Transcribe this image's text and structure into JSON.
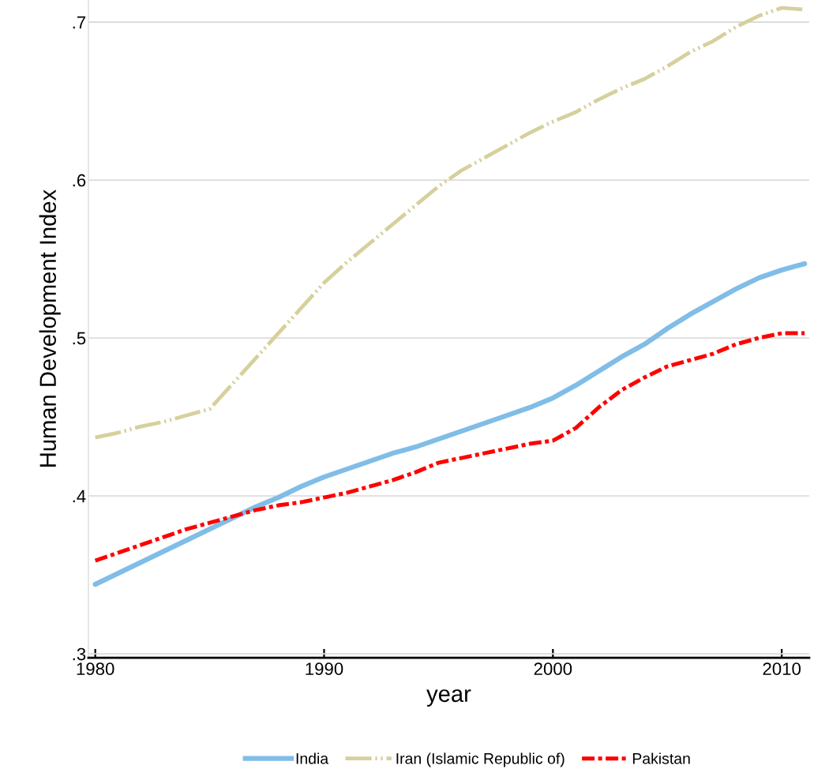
{
  "chart_data": {
    "type": "line",
    "xlabel": "year",
    "ylabel": "Human Development Index",
    "x": [
      1980,
      1981,
      1982,
      1983,
      1984,
      1985,
      1986,
      1987,
      1988,
      1989,
      1990,
      1991,
      1992,
      1993,
      1994,
      1995,
      1996,
      1997,
      1998,
      1999,
      2000,
      2001,
      2002,
      2003,
      2004,
      2005,
      2006,
      2007,
      2008,
      2009,
      2010,
      2011
    ],
    "series": [
      {
        "name": "India",
        "color": "#80bde7",
        "line_style": "solid",
        "values": [
          0.344,
          0.351,
          0.358,
          0.365,
          0.372,
          0.379,
          0.386,
          0.393,
          0.399,
          0.406,
          0.412,
          0.417,
          0.422,
          0.427,
          0.431,
          0.436,
          0.441,
          0.446,
          0.451,
          0.456,
          0.462,
          0.47,
          0.479,
          0.488,
          0.496,
          0.506,
          0.515,
          0.523,
          0.531,
          0.538,
          0.543,
          0.547
        ]
      },
      {
        "name": "Iran (Islamic Republic of)",
        "color": "#d6d09c",
        "line_style": "dotted",
        "values": [
          0.437,
          0.44,
          0.444,
          0.447,
          0.451,
          0.455,
          0.471,
          0.487,
          0.503,
          0.519,
          0.535,
          0.548,
          0.56,
          0.572,
          0.584,
          0.596,
          0.606,
          0.614,
          0.622,
          0.63,
          0.637,
          0.643,
          0.651,
          0.658,
          0.664,
          0.672,
          0.681,
          0.688,
          0.697,
          0.704,
          0.709,
          0.708
        ]
      },
      {
        "name": "Pakistan",
        "color": "#ff0000",
        "line_style": "dashed",
        "values": [
          0.359,
          0.364,
          0.369,
          0.374,
          0.379,
          0.383,
          0.387,
          0.391,
          0.394,
          0.396,
          0.399,
          0.402,
          0.406,
          0.41,
          0.415,
          0.421,
          0.424,
          0.427,
          0.43,
          0.433,
          0.435,
          0.443,
          0.456,
          0.467,
          0.475,
          0.482,
          0.486,
          0.49,
          0.496,
          0.5,
          0.503,
          0.503
        ]
      }
    ],
    "xlim": [
      1979.7,
      2011.2
    ],
    "xticks": [
      1980,
      1990,
      2000,
      2010
    ],
    "ylim": [
      0.2975,
      0.714
    ],
    "yticks": [
      {
        "value": 0.3,
        "label": ".3"
      },
      {
        "value": 0.4,
        "label": ".4"
      },
      {
        "value": 0.5,
        "label": ".5"
      },
      {
        "value": 0.6,
        "label": ".6"
      },
      {
        "value": 0.7,
        "label": ".7"
      }
    ],
    "grid": "y",
    "legend": "bottom",
    "marker": "none"
  }
}
